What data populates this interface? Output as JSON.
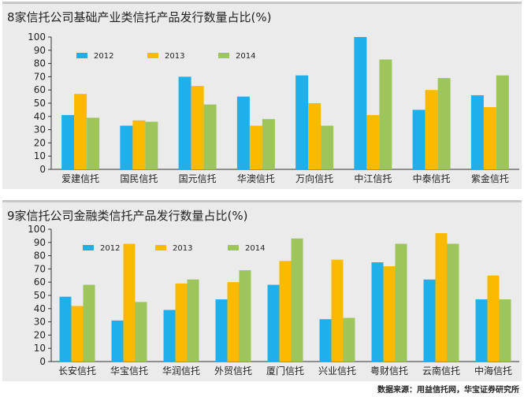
{
  "colors": {
    "2012": "#1fb0ec",
    "2013": "#fbb900",
    "2014": "#9dc55b"
  },
  "source": "数据来源：用益信托网，华宝证券研究所",
  "chart_data": [
    {
      "type": "bar",
      "title": "8家信托公司基础产业类信托产品发行数量占比(%)",
      "categories": [
        "爱建信托",
        "国民信托",
        "国元信托",
        "华澳信托",
        "万向信托",
        "中江信托",
        "中泰信托",
        "紫金信托"
      ],
      "series": [
        {
          "name": "2012",
          "values": [
            41,
            33,
            70,
            55,
            71,
            100,
            45,
            56
          ]
        },
        {
          "name": "2013",
          "values": [
            57,
            37,
            63,
            33,
            50,
            41,
            60,
            47
          ]
        },
        {
          "name": "2014",
          "values": [
            39,
            36,
            49,
            38,
            33,
            83,
            69,
            71
          ]
        }
      ],
      "yticks": [
        "0",
        "10",
        "20",
        "30",
        "40",
        "50",
        "60",
        "70",
        "80",
        "90",
        "100"
      ],
      "ylim": [
        0,
        100
      ],
      "legend": "top-left"
    },
    {
      "type": "bar",
      "title": "9家信托公司金融类信托产品发行数量占比(%)",
      "categories": [
        "长安信托",
        "华宝信托",
        "华润信托",
        "外贸信托",
        "厦门信托",
        "兴业信托",
        "粤财信托",
        "云南信托",
        "中海信托"
      ],
      "series": [
        {
          "name": "2012",
          "values": [
            49,
            31,
            39,
            47,
            58,
            32,
            75,
            62,
            47
          ]
        },
        {
          "name": "2013",
          "values": [
            42,
            89,
            59,
            60,
            76,
            77,
            72,
            97,
            65
          ]
        },
        {
          "name": "2014",
          "values": [
            58,
            45,
            62,
            69,
            93,
            33,
            89,
            89,
            47
          ]
        }
      ],
      "yticks": [
        "0",
        "10",
        "20",
        "30",
        "40",
        "50",
        "60",
        "70",
        "80",
        "90",
        "100"
      ],
      "ylim": [
        0,
        100
      ],
      "legend": "top-left"
    }
  ]
}
